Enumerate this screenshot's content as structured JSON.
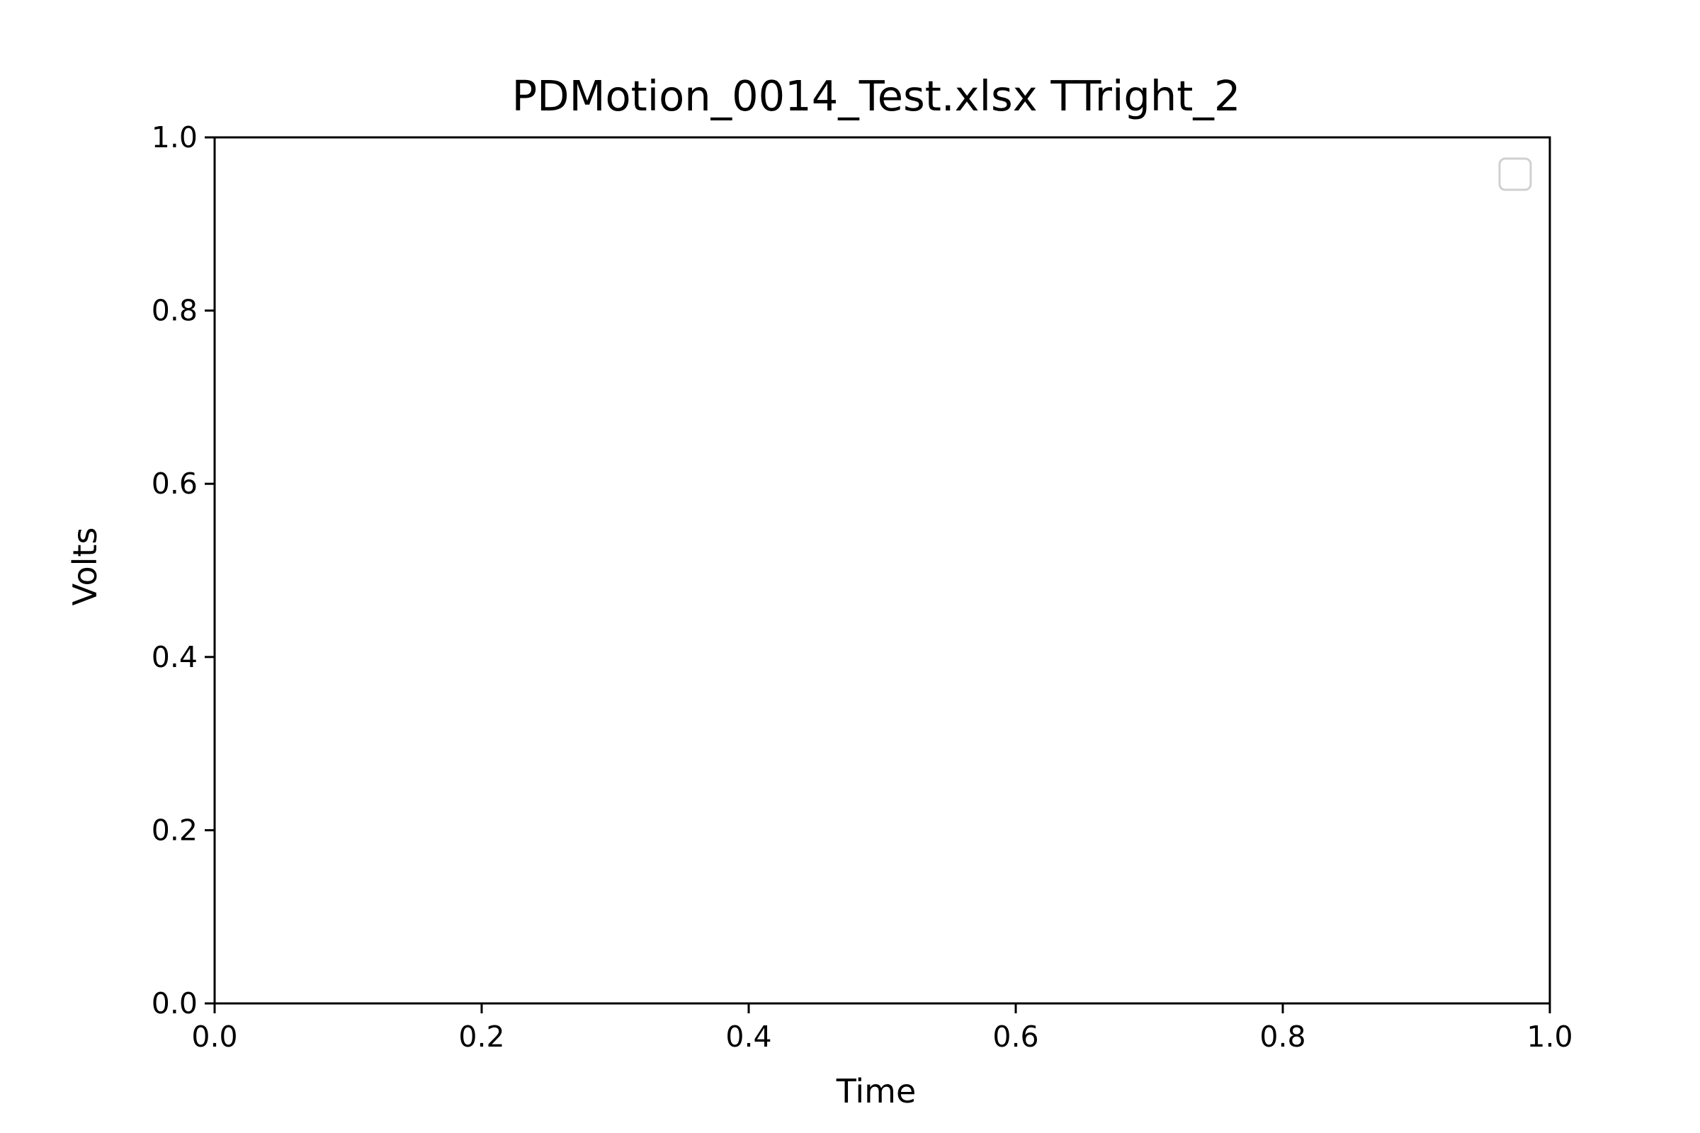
{
  "chart_data": {
    "type": "line",
    "title": "PDMotion_0014_Test.xlsx TTright_2",
    "xlabel": "Time",
    "ylabel": "Volts",
    "xlim": [
      0.0,
      1.0
    ],
    "ylim": [
      0.0,
      1.0
    ],
    "x_ticks": [
      "0.0",
      "0.2",
      "0.4",
      "0.6",
      "0.8",
      "1.0"
    ],
    "y_ticks": [
      "0.0",
      "0.2",
      "0.4",
      "0.6",
      "0.8",
      "1.0"
    ],
    "grid": false,
    "legend": {
      "placement": "top-right",
      "entries": []
    },
    "series": []
  }
}
